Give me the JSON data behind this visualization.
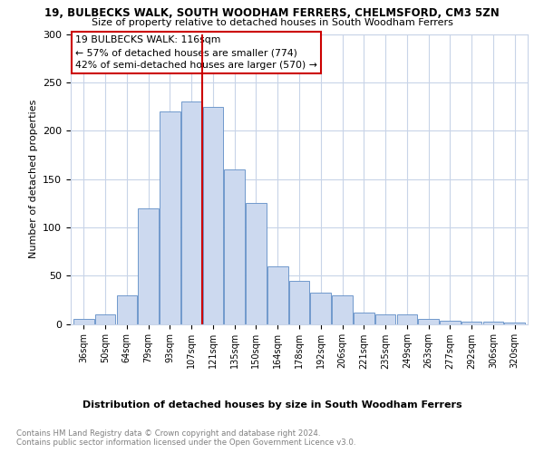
{
  "title": "19, BULBECKS WALK, SOUTH WOODHAM FERRERS, CHELMSFORD, CM3 5ZN",
  "subtitle": "Size of property relative to detached houses in South Woodham Ferrers",
  "xlabel": "Distribution of detached houses by size in South Woodham Ferrers",
  "ylabel": "Number of detached properties",
  "bin_labels": [
    "36sqm",
    "50sqm",
    "64sqm",
    "79sqm",
    "93sqm",
    "107sqm",
    "121sqm",
    "135sqm",
    "150sqm",
    "164sqm",
    "178sqm",
    "192sqm",
    "206sqm",
    "221sqm",
    "235sqm",
    "249sqm",
    "263sqm",
    "277sqm",
    "292sqm",
    "306sqm",
    "320sqm"
  ],
  "bar_values": [
    5,
    10,
    30,
    120,
    220,
    230,
    225,
    160,
    125,
    60,
    45,
    32,
    30,
    12,
    10,
    10,
    5,
    3,
    2,
    2,
    1
  ],
  "bar_color": "#ccd9ef",
  "bar_edge_color": "#7099cc",
  "vline_x": 6,
  "vline_color": "#cc0000",
  "annotation_text": "19 BULBECKS WALK: 116sqm\n← 57% of detached houses are smaller (774)\n42% of semi-detached houses are larger (570) →",
  "annotation_box_color": "#ffffff",
  "annotation_box_edge": "#cc0000",
  "ylim": [
    0,
    300
  ],
  "yticks": [
    0,
    50,
    100,
    150,
    200,
    250,
    300
  ],
  "footer_line1": "Contains HM Land Registry data © Crown copyright and database right 2024.",
  "footer_line2": "Contains public sector information licensed under the Open Government Licence v3.0.",
  "background_color": "#ffffff",
  "grid_color": "#c8d4e8"
}
